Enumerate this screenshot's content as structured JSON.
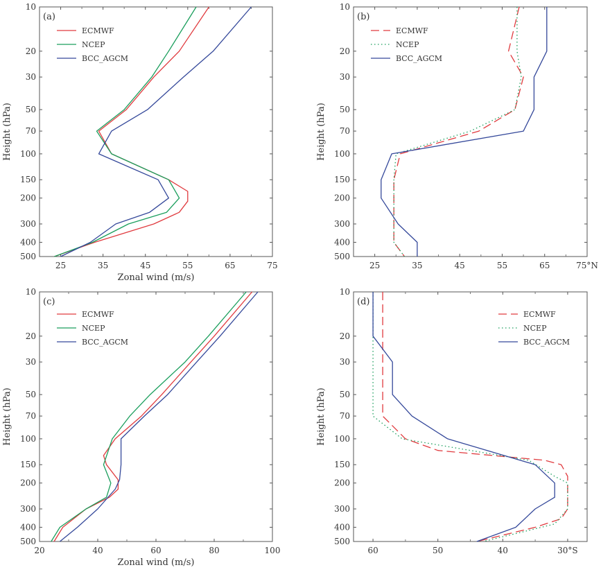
{
  "chart_data": [
    {
      "panel": "(a)",
      "type": "line",
      "xlabel": "Zonal wind (m/s)",
      "ylabel": "Height (hPa)",
      "xlim": [
        20,
        75
      ],
      "xticks": [
        25,
        35,
        45,
        55,
        65,
        75
      ],
      "xtick_labels": [
        "25",
        "35",
        "45",
        "55",
        "65",
        "75"
      ],
      "x_direction": "normal",
      "y_scale": "log",
      "ylim": [
        500,
        10
      ],
      "yticks": [
        10,
        20,
        30,
        50,
        70,
        100,
        150,
        200,
        300,
        400,
        500
      ],
      "legend": "top-left",
      "series": [
        {
          "name": "ECMWF",
          "color": "#e03a3e",
          "style": "solid",
          "points": [
            [
              60,
              10
            ],
            [
              53,
              20
            ],
            [
              47,
              30
            ],
            [
              40.5,
              50
            ],
            [
              34,
              70
            ],
            [
              37,
              100
            ],
            [
              50.5,
              150
            ],
            [
              55,
              180
            ],
            [
              55,
              210
            ],
            [
              53,
              250
            ],
            [
              47,
              300
            ],
            [
              33,
              400
            ],
            [
              23.5,
              500
            ]
          ]
        },
        {
          "name": "NCEP",
          "color": "#1a9e5c",
          "style": "solid",
          "points": [
            [
              57,
              10
            ],
            [
              50.5,
              20
            ],
            [
              46.5,
              30
            ],
            [
              40,
              50
            ],
            [
              33.5,
              70
            ],
            [
              37,
              100
            ],
            [
              50.5,
              150
            ],
            [
              53,
              200
            ],
            [
              50,
              250
            ],
            [
              41,
              300
            ],
            [
              32.5,
              400
            ],
            [
              23.5,
              500
            ]
          ]
        },
        {
          "name": "BCC_AGCM",
          "color": "#34489a",
          "style": "solid",
          "points": [
            [
              70,
              10
            ],
            [
              61,
              20
            ],
            [
              54,
              30
            ],
            [
              45.5,
              50
            ],
            [
              37,
              70
            ],
            [
              34,
              100
            ],
            [
              48,
              150
            ],
            [
              50.5,
              200
            ],
            [
              46,
              250
            ],
            [
              38,
              300
            ],
            [
              32,
              400
            ],
            [
              25,
              500
            ]
          ]
        }
      ]
    },
    {
      "panel": "(b)",
      "type": "line",
      "xlabel": "",
      "ylabel": "Height (hPa)",
      "xlim": [
        20,
        75
      ],
      "xticks": [
        25,
        35,
        45,
        55,
        65,
        75
      ],
      "xtick_labels": [
        "25",
        "35",
        "45",
        "55",
        "65",
        "75°N"
      ],
      "x_direction": "normal",
      "y_scale": "log",
      "ylim": [
        500,
        10
      ],
      "yticks": [
        10,
        20,
        30,
        50,
        70,
        100,
        150,
        200,
        300,
        400,
        500
      ],
      "legend": "top-left",
      "series": [
        {
          "name": "ECMWF",
          "color": "#e03a3e",
          "style": "dashed",
          "points": [
            [
              59,
              10
            ],
            [
              56.5,
              20
            ],
            [
              60,
              30
            ],
            [
              58,
              50
            ],
            [
              49.5,
              70
            ],
            [
              31,
              100
            ],
            [
              29.5,
              150
            ],
            [
              29.5,
              200
            ],
            [
              29.5,
              300
            ],
            [
              29.5,
              400
            ],
            [
              32,
              500
            ]
          ]
        },
        {
          "name": "NCEP",
          "color": "#1a9e5c",
          "style": "dotted",
          "points": [
            [
              58.5,
              10
            ],
            [
              58.5,
              20
            ],
            [
              59.5,
              30
            ],
            [
              58,
              50
            ],
            [
              47.5,
              70
            ],
            [
              30,
              100
            ],
            [
              29.5,
              150
            ],
            [
              29.5,
              200
            ],
            [
              29.5,
              300
            ],
            [
              29.5,
              400
            ],
            [
              32,
              500
            ]
          ]
        },
        {
          "name": "BCC_AGCM",
          "color": "#34489a",
          "style": "solid",
          "points": [
            [
              65.5,
              10
            ],
            [
              65.5,
              20
            ],
            [
              62.5,
              30
            ],
            [
              62.5,
              50
            ],
            [
              60,
              70
            ],
            [
              29,
              100
            ],
            [
              26.5,
              150
            ],
            [
              26.5,
              200
            ],
            [
              30.5,
              300
            ],
            [
              35,
              400
            ],
            [
              35,
              500
            ]
          ]
        }
      ]
    },
    {
      "panel": "(c)",
      "type": "line",
      "xlabel": "Zonal wind (m/s)",
      "ylabel": "Height (hPa)",
      "xlim": [
        20,
        100
      ],
      "xticks": [
        20,
        40,
        60,
        80,
        100
      ],
      "xtick_labels": [
        "20",
        "40",
        "60",
        "80",
        "100"
      ],
      "x_direction": "normal",
      "y_scale": "log",
      "ylim": [
        500,
        10
      ],
      "yticks": [
        10,
        20,
        30,
        50,
        70,
        100,
        150,
        200,
        300,
        400,
        500
      ],
      "legend": "top-left",
      "series": [
        {
          "name": "ECMWF",
          "color": "#e03a3e",
          "style": "solid",
          "points": [
            [
              93,
              10
            ],
            [
              80,
              20
            ],
            [
              72,
              30
            ],
            [
              62,
              50
            ],
            [
              55,
              70
            ],
            [
              46,
              100
            ],
            [
              42,
              130
            ],
            [
              43,
              150
            ],
            [
              47,
              190
            ],
            [
              47,
              220
            ],
            [
              44,
              250
            ],
            [
              36,
              300
            ],
            [
              28,
              400
            ],
            [
              25,
              500
            ]
          ]
        },
        {
          "name": "NCEP",
          "color": "#1a9e5c",
          "style": "solid",
          "points": [
            [
              91,
              10
            ],
            [
              78,
              20
            ],
            [
              70,
              30
            ],
            [
              58,
              50
            ],
            [
              51,
              70
            ],
            [
              45,
              100
            ],
            [
              42,
              150
            ],
            [
              44.5,
              200
            ],
            [
              43,
              250
            ],
            [
              36,
              300
            ],
            [
              27,
              400
            ],
            [
              24,
              500
            ]
          ]
        },
        {
          "name": "BCC_AGCM",
          "color": "#34489a",
          "style": "solid",
          "points": [
            [
              95,
              10
            ],
            [
              82,
              20
            ],
            [
              74,
              30
            ],
            [
              64,
              50
            ],
            [
              56,
              70
            ],
            [
              48,
              100
            ],
            [
              48,
              150
            ],
            [
              47.5,
              190
            ],
            [
              46,
              220
            ],
            [
              40,
              300
            ],
            [
              33,
              400
            ],
            [
              27,
              500
            ]
          ]
        }
      ]
    },
    {
      "panel": "(d)",
      "type": "line",
      "xlabel": "",
      "ylabel": "Height (hPa)",
      "xlim": [
        63,
        27
      ],
      "xticks": [
        60,
        50,
        40,
        30
      ],
      "xtick_labels": [
        "60",
        "50",
        "40",
        "30°S"
      ],
      "x_direction": "reversed",
      "y_scale": "log",
      "ylim": [
        500,
        10
      ],
      "yticks": [
        10,
        20,
        30,
        50,
        70,
        100,
        150,
        200,
        300,
        400,
        500
      ],
      "legend": "top-right",
      "series": [
        {
          "name": "ECMWF",
          "color": "#e03a3e",
          "style": "dashed",
          "points": [
            [
              58.5,
              10
            ],
            [
              58.5,
              70
            ],
            [
              55,
              100
            ],
            [
              50,
              120
            ],
            [
              33.5,
              140
            ],
            [
              31,
              150
            ],
            [
              30,
              180
            ],
            [
              30,
              300
            ],
            [
              31,
              350
            ],
            [
              35,
              400
            ],
            [
              44,
              500
            ]
          ]
        },
        {
          "name": "NCEP",
          "color": "#1a9e5c",
          "style": "dotted",
          "points": [
            [
              60,
              10
            ],
            [
              60,
              70
            ],
            [
              55.5,
              100
            ],
            [
              50,
              110
            ],
            [
              36,
              140
            ],
            [
              32,
              180
            ],
            [
              30,
              200
            ],
            [
              30,
              300
            ],
            [
              32,
              380
            ],
            [
              36,
              420
            ],
            [
              43,
              500
            ]
          ]
        },
        {
          "name": "BCC_AGCM",
          "color": "#34489a",
          "style": "solid",
          "points": [
            [
              60,
              10
            ],
            [
              60,
              20
            ],
            [
              57,
              30
            ],
            [
              57,
              50
            ],
            [
              54,
              70
            ],
            [
              48.5,
              100
            ],
            [
              35,
              150
            ],
            [
              32,
              200
            ],
            [
              32,
              250
            ],
            [
              35,
              300
            ],
            [
              38,
              400
            ],
            [
              44,
              500
            ]
          ]
        }
      ]
    }
  ]
}
